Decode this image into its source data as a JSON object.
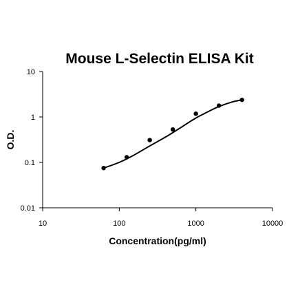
{
  "chart_data": {
    "type": "scatter",
    "title": "Mouse L-Selectin ELISA Kit",
    "xlabel": "Concentration(pg/ml)",
    "ylabel": "O.D.",
    "xscale": "log",
    "yscale": "log",
    "xlim": [
      10,
      10000
    ],
    "ylim": [
      0.01,
      10
    ],
    "xticks": [
      "10",
      "100",
      "1000",
      "10000"
    ],
    "yticks": [
      "0.01",
      "0.1",
      "1",
      "10"
    ],
    "grid": false,
    "series": [
      {
        "kind": "points",
        "x": [
          62.5,
          125,
          250,
          500,
          1000,
          2000,
          4000
        ],
        "y": [
          0.075,
          0.13,
          0.31,
          0.53,
          1.18,
          1.78,
          2.38
        ]
      },
      {
        "kind": "fit-curve",
        "x": [
          62.5,
          100,
          150,
          250,
          400,
          600,
          1000,
          1500,
          2000,
          3000,
          4000
        ],
        "y": [
          0.075,
          0.1,
          0.14,
          0.23,
          0.36,
          0.55,
          0.95,
          1.35,
          1.7,
          2.15,
          2.38
        ]
      }
    ]
  }
}
